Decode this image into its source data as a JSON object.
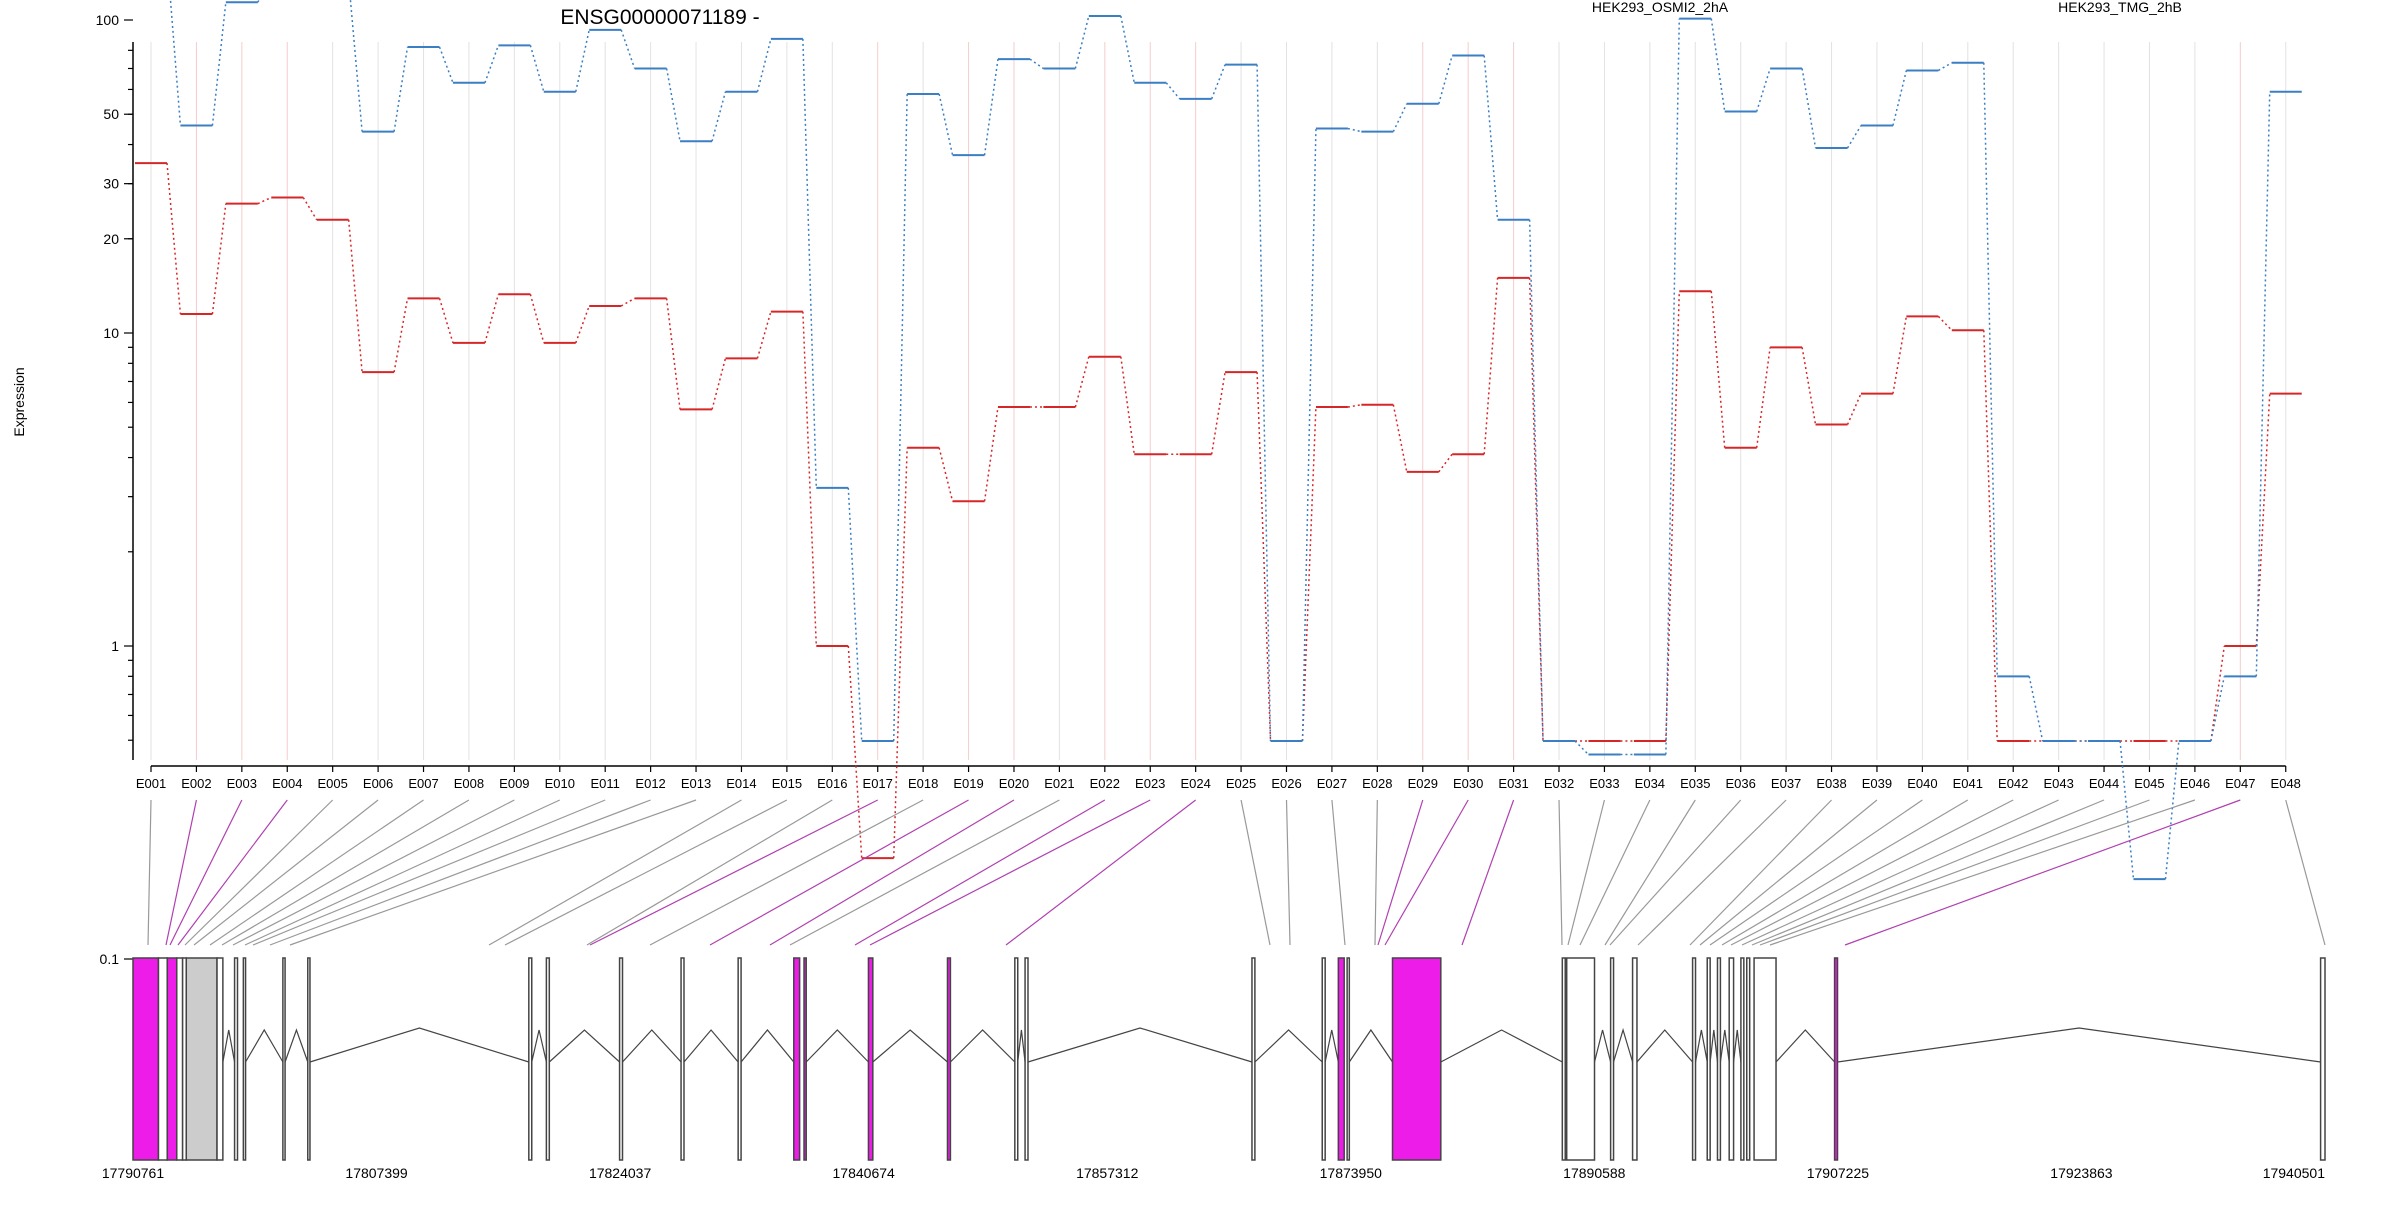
{
  "chart_data": {
    "type": "line",
    "title": "ENSG00000071189 -",
    "xlabel": "",
    "ylabel": "Expression",
    "y_scale": "log (offset at 0.1)",
    "y_ticks": [
      {
        "value": 100,
        "label": "100"
      },
      {
        "value": 50,
        "label": "50"
      },
      {
        "value": 30,
        "label": "30"
      },
      {
        "value": 20,
        "label": "20"
      },
      {
        "value": 10,
        "label": "10"
      },
      {
        "value": 1,
        "label": "1"
      },
      {
        "value": 0.1,
        "label": "0.1"
      }
    ],
    "legend_placement": "top-right",
    "categories": [
      "E001",
      "E002",
      "E003",
      "E004",
      "E005",
      "E006",
      "E007",
      "E008",
      "E009",
      "E010",
      "E011",
      "E012",
      "E013",
      "E014",
      "E015",
      "E016",
      "E017",
      "E018",
      "E019",
      "E020",
      "E021",
      "E022",
      "E023",
      "E024",
      "E025",
      "E026",
      "E027",
      "E028",
      "E029",
      "E030",
      "E031",
      "E032",
      "E033",
      "E034",
      "E035",
      "E036",
      "E037",
      "E038",
      "E039",
      "E040",
      "E041",
      "E042",
      "E043",
      "E044",
      "E045",
      "E046",
      "E047",
      "E048"
    ],
    "highlighted_bins": [
      "E002",
      "E003",
      "E004",
      "E017",
      "E019",
      "E020",
      "E022",
      "E023",
      "E024",
      "E029",
      "E030",
      "E031",
      "E047"
    ],
    "series": [
      {
        "name": "HEK293_OSMI2_2hA",
        "color": "#d62728",
        "values": [
          34.9,
          11.5,
          25.9,
          27.1,
          23.0,
          7.5,
          12.9,
          9.3,
          13.3,
          9.3,
          12.2,
          12.9,
          5.7,
          8.3,
          11.7,
          1.0,
          0.21,
          4.3,
          2.9,
          5.8,
          5.8,
          8.4,
          4.1,
          4.1,
          7.5,
          0.0,
          5.8,
          5.9,
          3.6,
          4.1,
          15.0,
          0.0,
          0.0,
          0.0,
          13.6,
          4.3,
          9.0,
          5.1,
          6.4,
          11.3,
          10.2,
          0.0,
          0.0,
          0.0,
          0.0,
          0.0,
          1.0,
          6.4
        ]
      },
      {
        "name": "HEK293_TMG_2hB",
        "color": "#3a7fc4",
        "values": [
          160.0,
          46.0,
          114.0,
          137.0,
          134.0,
          44.0,
          82.0,
          63.0,
          83.0,
          59.0,
          93.0,
          70.0,
          41.0,
          59.0,
          87.0,
          3.2,
          0.0,
          58.0,
          37.0,
          75.0,
          70.0,
          103.0,
          63.0,
          56.0,
          72.0,
          0.0,
          45.0,
          44.0,
          54.0,
          77.0,
          23.0,
          0.0,
          0.45,
          0.45,
          101.0,
          51.0,
          70.0,
          39.0,
          46.0,
          69.0,
          73.0,
          0.8,
          0.0,
          0.0,
          0.18,
          0.0,
          0.8,
          59.0
        ]
      }
    ],
    "genome_axis_labels": [
      "17790761",
      "17807399",
      "17824037",
      "17840674",
      "17857312",
      "17873950",
      "17890588",
      "17907225",
      "17923863",
      "17940501"
    ],
    "genome_range": [
      17790761,
      17940501
    ]
  },
  "gene_model": {
    "highlight_color": "#ee1ce8",
    "exon_color": "#cccccc",
    "line_color": "#444444",
    "link_normal_color": "#999999",
    "link_highlight_color": "#b040b0"
  }
}
